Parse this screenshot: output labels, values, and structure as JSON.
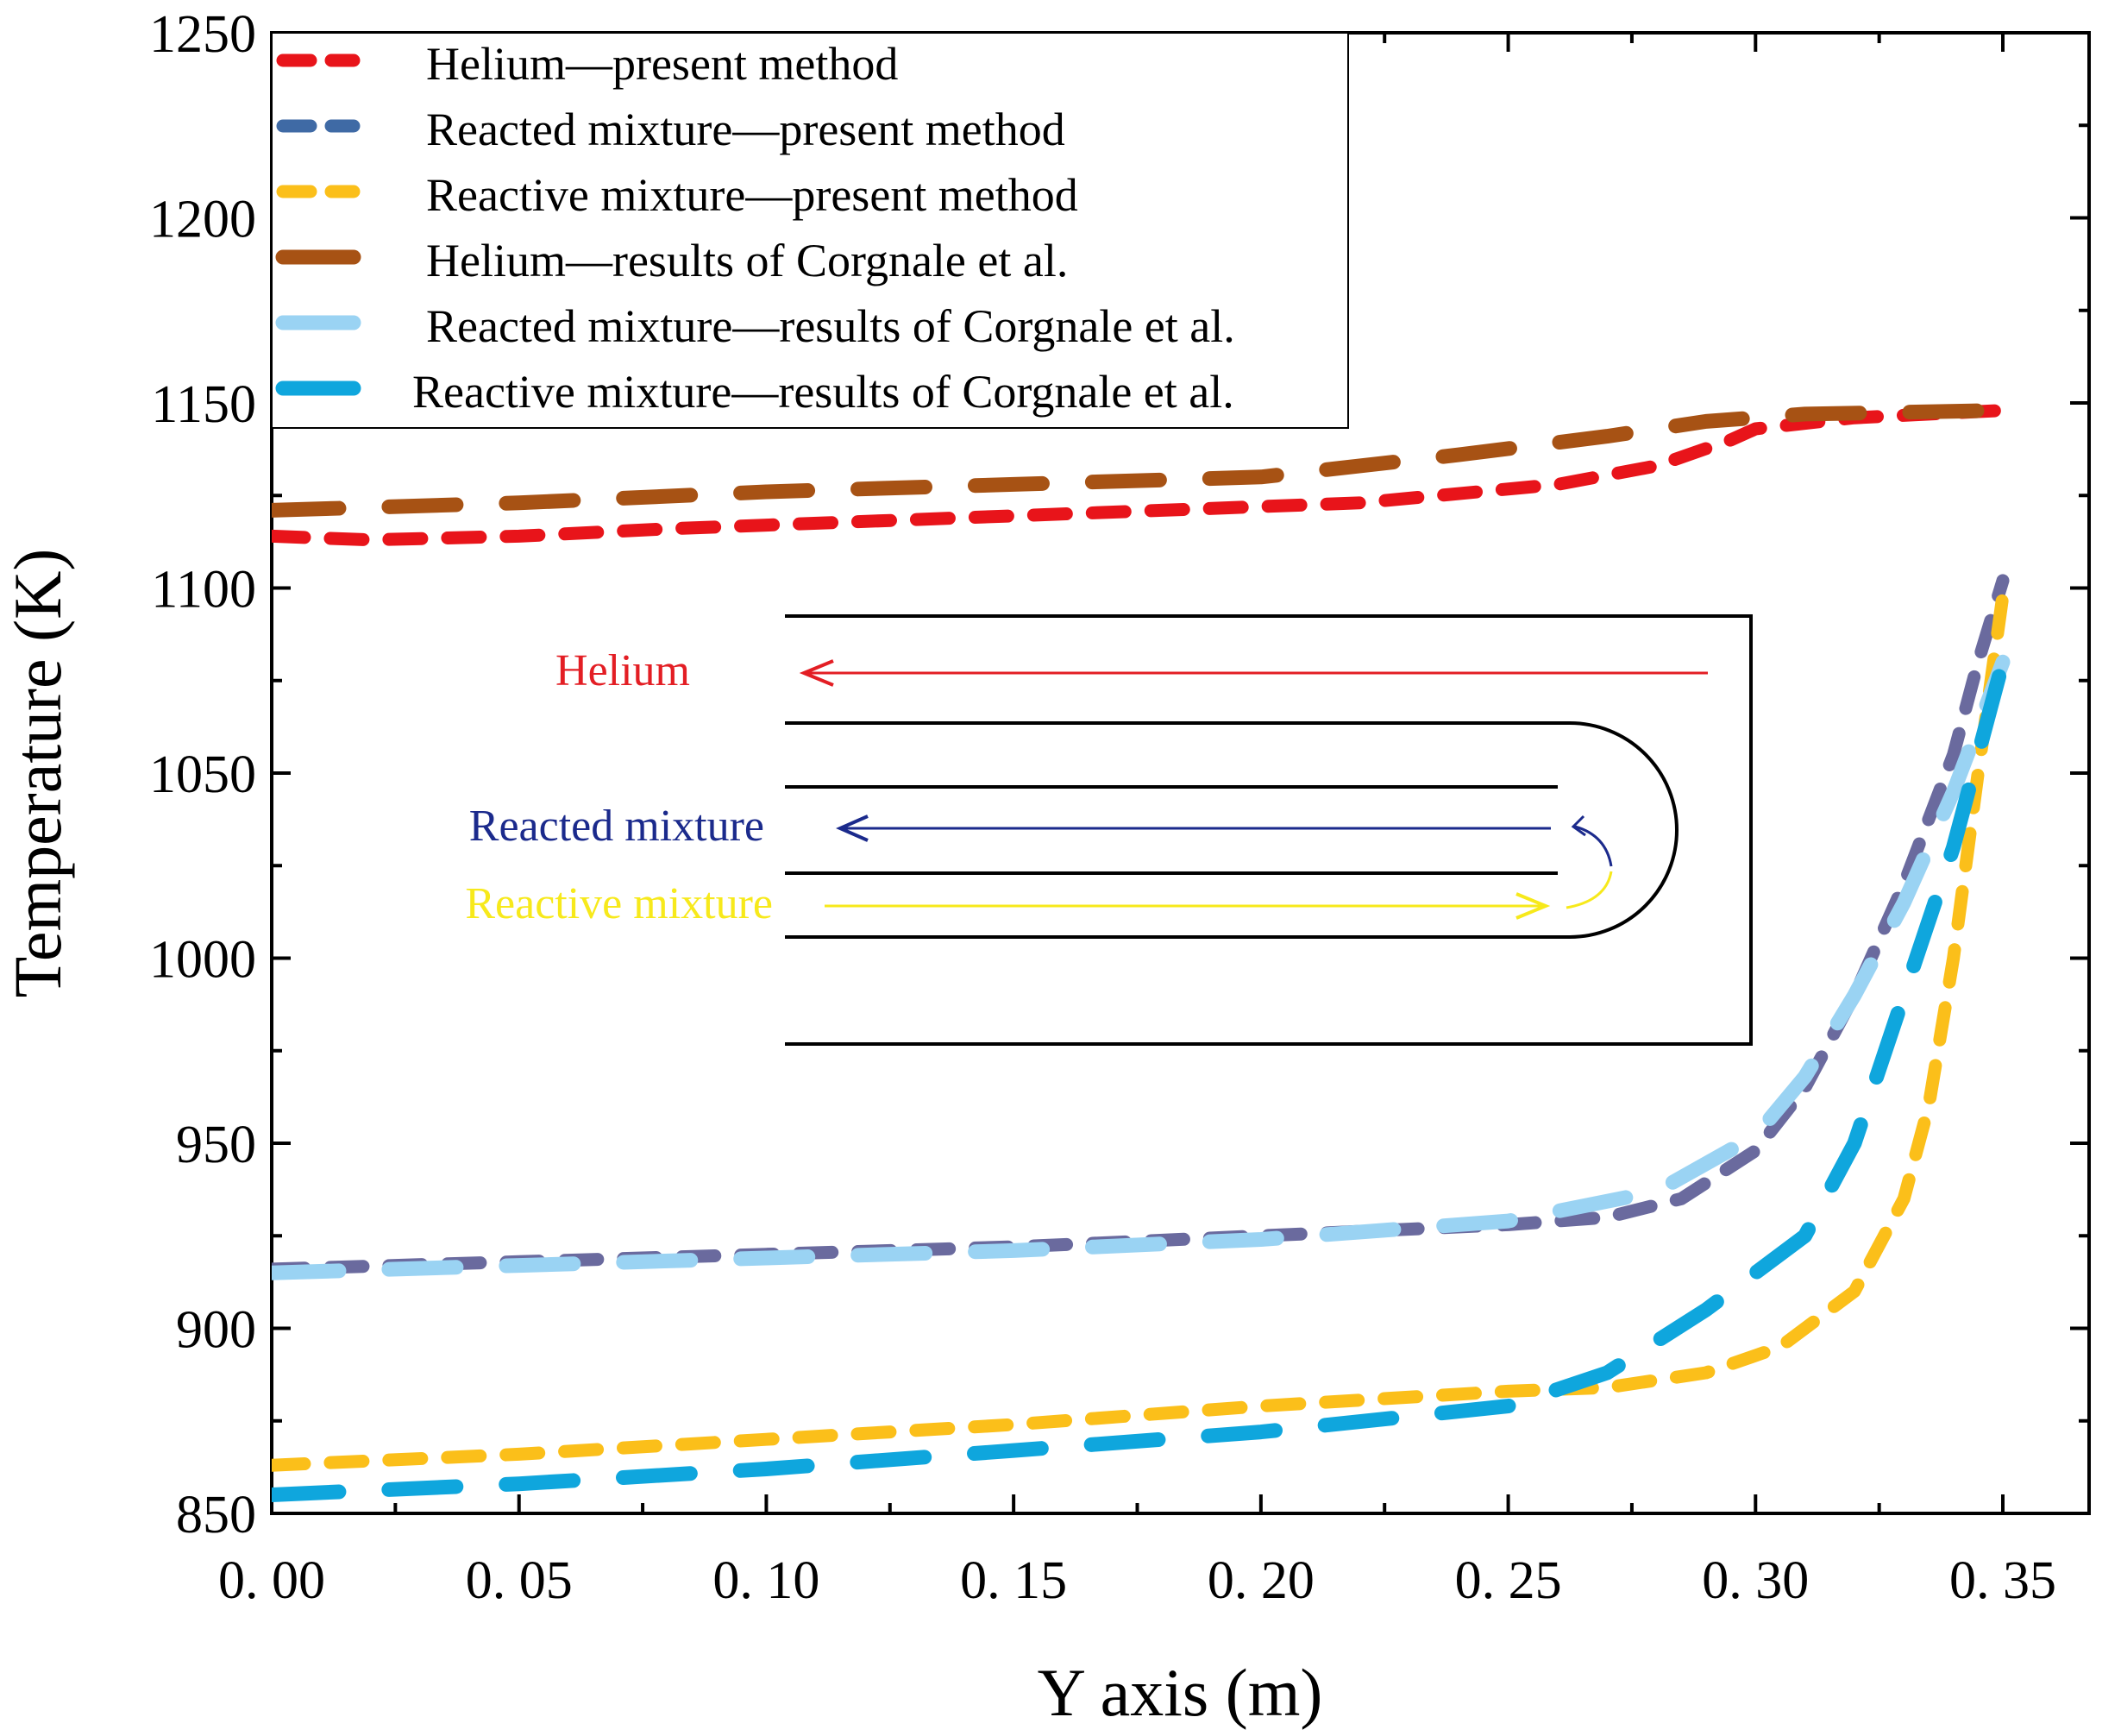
{
  "chart_data": {
    "type": "line",
    "title": "",
    "xlabel": "Y axis (m)",
    "ylabel": "Temperature (K)",
    "xlim": [
      0,
      0.365
    ],
    "ylim": [
      850,
      1250
    ],
    "x_ticks": [
      0,
      0.05,
      0.1,
      0.15,
      0.2,
      0.25,
      0.3,
      0.35
    ],
    "x_tick_labels": [
      "0. 00",
      "0. 05",
      "0. 10",
      "0. 15",
      "0. 20",
      "0. 25",
      "0. 30",
      "0. 35"
    ],
    "y_ticks": [
      850,
      900,
      950,
      1000,
      1050,
      1100,
      1150,
      1200,
      1250
    ],
    "y_tick_labels": [
      "850",
      "900",
      "950",
      "1000",
      "1050",
      "1100",
      "1150",
      "1200",
      "1250"
    ],
    "legend_position": "top-left",
    "series": [
      {
        "name": "Helium—present method",
        "color": "#e8141a",
        "style": "short-dash",
        "x": [
          0,
          0.02,
          0.05,
          0.08,
          0.1,
          0.14,
          0.18,
          0.22,
          0.26,
          0.28,
          0.295,
          0.3,
          0.32,
          0.35
        ],
        "y": [
          1114,
          1113,
          1114,
          1116,
          1117,
          1119,
          1121,
          1123,
          1128,
          1133,
          1140,
          1143,
          1146,
          1148
        ]
      },
      {
        "name": "Reacted mixture—present method",
        "color": "#6a6a9e",
        "legend_color": "#3f6aa5",
        "style": "short-dash",
        "x": [
          0,
          0.05,
          0.1,
          0.15,
          0.2,
          0.25,
          0.27,
          0.285,
          0.3,
          0.31,
          0.32,
          0.33,
          0.34,
          0.345,
          0.35
        ],
        "y": [
          916,
          918,
          920,
          922,
          925,
          928,
          930,
          935,
          948,
          965,
          990,
          1020,
          1055,
          1080,
          1102
        ]
      },
      {
        "name": "Reactive mixture—present method",
        "color": "#fbbf1a",
        "style": "short-dash",
        "x": [
          0,
          0.05,
          0.1,
          0.15,
          0.2,
          0.25,
          0.27,
          0.29,
          0.305,
          0.32,
          0.33,
          0.335,
          0.34,
          0.345,
          0.35
        ],
        "y": [
          863,
          866,
          870,
          874,
          879,
          883,
          884,
          888,
          895,
          910,
          935,
          960,
          1000,
          1050,
          1098
        ]
      },
      {
        "name": "Helium—results of Corgnale et al.",
        "color": "#a75214",
        "style": "long-dash",
        "x": [
          0,
          0.05,
          0.1,
          0.15,
          0.2,
          0.24,
          0.27,
          0.29,
          0.31,
          0.35
        ],
        "y": [
          1121,
          1123,
          1126,
          1128,
          1130,
          1136,
          1141,
          1145,
          1147,
          1148
        ]
      },
      {
        "name": "Reacted mixture—results of Corgnale et al.",
        "color": "#9ad3f3",
        "style": "long-dash",
        "x": [
          0,
          0.05,
          0.1,
          0.15,
          0.2,
          0.25,
          0.28,
          0.3,
          0.31,
          0.32,
          0.33,
          0.34,
          0.35
        ],
        "y": [
          915,
          917,
          919,
          921,
          924,
          929,
          937,
          952,
          968,
          990,
          1015,
          1045,
          1080
        ]
      },
      {
        "name": "Reactive mixture—results of Corgnale et al.",
        "color": "#0fa6dd",
        "style": "long-dash",
        "x": [
          0,
          0.05,
          0.1,
          0.15,
          0.2,
          0.25,
          0.27,
          0.29,
          0.31,
          0.32,
          0.33,
          0.34,
          0.35
        ],
        "y": [
          855,
          858,
          862,
          867,
          872,
          879,
          888,
          905,
          925,
          950,
          990,
          1030,
          1080
        ]
      }
    ],
    "annotations": {
      "helium_label": "Helium",
      "reacted_label": "Reacted mixture",
      "reactive_label": "Reactive mixture",
      "helium_color": "#e31e24",
      "reacted_color": "#1b2a8c",
      "reactive_color": "#f7e91b"
    }
  }
}
